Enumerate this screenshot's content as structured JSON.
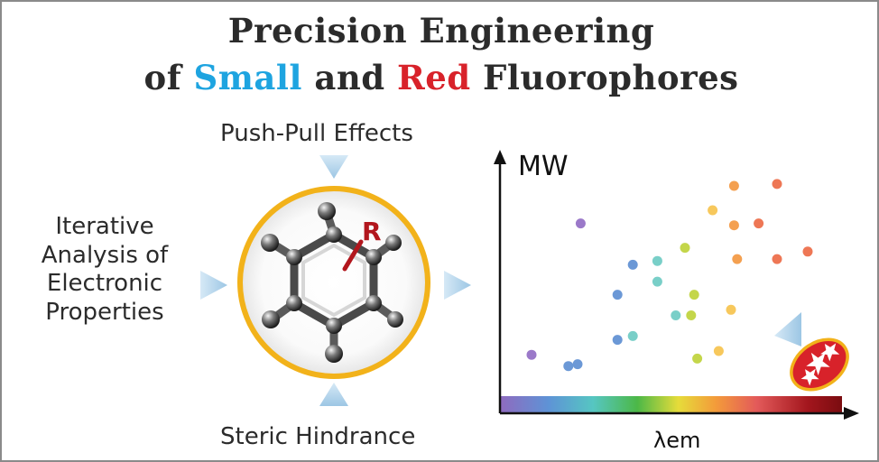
{
  "title": {
    "line1": "Precision Engineering",
    "line2_prefix": "of ",
    "line2_small": "Small",
    "line2_middle": " and ",
    "line2_red": "Red",
    "line2_suffix": " Fluorophores"
  },
  "labels": {
    "push_pull": "Push-Pull Effects",
    "steric": "Steric Hindrance",
    "iterative": [
      "Iterative",
      "Analysis of",
      "Electronic",
      "Properties"
    ],
    "substituent": "R"
  },
  "colors": {
    "title_small": "#1ea4e0",
    "title_red": "#d8222a",
    "ring": "#f2b21a",
    "arrow": "#a9cfe8",
    "badge": "#d8222a"
  },
  "chart_data": {
    "type": "scatter",
    "ylabel": "MW",
    "xlabel": "λem",
    "points": [
      {
        "x": 0.05,
        "y": 0.1,
        "color": "#9b79c9"
      },
      {
        "x": 0.21,
        "y": 0.8,
        "color": "#9b79c9"
      },
      {
        "x": 0.17,
        "y": 0.04,
        "color": "#6b98d6"
      },
      {
        "x": 0.2,
        "y": 0.05,
        "color": "#6b98d6"
      },
      {
        "x": 0.38,
        "y": 0.58,
        "color": "#6b98d6"
      },
      {
        "x": 0.33,
        "y": 0.42,
        "color": "#6b98d6"
      },
      {
        "x": 0.33,
        "y": 0.18,
        "color": "#6b98d6"
      },
      {
        "x": 0.46,
        "y": 0.6,
        "color": "#79cfc8"
      },
      {
        "x": 0.46,
        "y": 0.49,
        "color": "#79cfc8"
      },
      {
        "x": 0.38,
        "y": 0.2,
        "color": "#79cfc8"
      },
      {
        "x": 0.52,
        "y": 0.31,
        "color": "#79cfc8"
      },
      {
        "x": 0.55,
        "y": 0.67,
        "color": "#c4d64a"
      },
      {
        "x": 0.58,
        "y": 0.42,
        "color": "#c4d64a"
      },
      {
        "x": 0.57,
        "y": 0.31,
        "color": "#c4d64a"
      },
      {
        "x": 0.59,
        "y": 0.08,
        "color": "#c4d64a"
      },
      {
        "x": 0.64,
        "y": 0.87,
        "color": "#f7c85c"
      },
      {
        "x": 0.7,
        "y": 0.34,
        "color": "#f7c85c"
      },
      {
        "x": 0.66,
        "y": 0.12,
        "color": "#f7c85c"
      },
      {
        "x": 0.71,
        "y": 1.0,
        "color": "#f4a050"
      },
      {
        "x": 0.71,
        "y": 0.79,
        "color": "#f4a050"
      },
      {
        "x": 0.72,
        "y": 0.61,
        "color": "#f4a050"
      },
      {
        "x": 0.79,
        "y": 0.8,
        "color": "#ee7755"
      },
      {
        "x": 0.85,
        "y": 1.01,
        "color": "#ee7755"
      },
      {
        "x": 0.85,
        "y": 0.61,
        "color": "#ee7755"
      },
      {
        "x": 0.95,
        "y": 0.65,
        "color": "#ee7755"
      }
    ],
    "x_gradient": [
      "#8e6bbf",
      "#5e93d6",
      "#56c6c2",
      "#4cb847",
      "#e6dc3a",
      "#f39b3a",
      "#e35a5a",
      "#a3161d",
      "#7a0c10"
    ]
  }
}
